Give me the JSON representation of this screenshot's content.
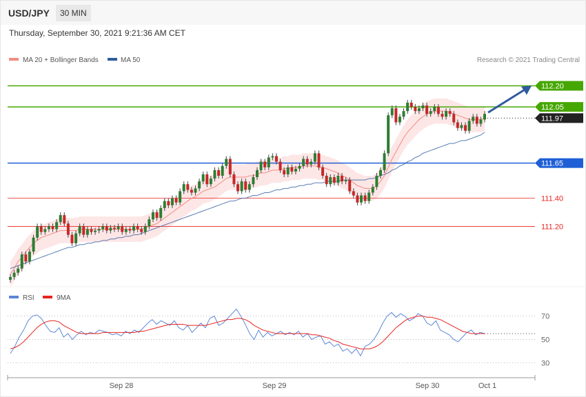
{
  "header": {
    "pair": "USD/JPY",
    "timeframe": "30 MIN"
  },
  "datetime": "Thursday, September 30, 2021 9:21:36 AM CET",
  "copyright": "Research © 2021 Trading Central",
  "legend_top": [
    {
      "label": "MA 20 + Bollinger Bands",
      "color": "#f28b82"
    },
    {
      "label": "MA 50",
      "color": "#2f5b9e"
    }
  ],
  "legend_rsi": [
    {
      "label": "RSI",
      "color": "#5b86d6"
    },
    {
      "label": "9MA",
      "color": "#e8241f"
    }
  ],
  "chart_data": [
    {
      "type": "candlestick",
      "ylim": [
        110.8,
        112.32
      ],
      "x_tick_labels": [
        "Sep 28",
        "Sep 29",
        "Sep 30",
        "Oct 1"
      ],
      "levels": [
        {
          "value": 112.2,
          "label": "112.20",
          "color": "#46a700",
          "style": "solid",
          "tag": "filled"
        },
        {
          "value": 112.05,
          "label": "112.05",
          "color": "#46a700",
          "style": "solid",
          "tag": "filled"
        },
        {
          "value": 111.97,
          "label": "111.97",
          "color": "#222222",
          "style": "dotted",
          "tag": "filled"
        },
        {
          "value": 111.65,
          "label": "111.65",
          "color": "#1f5fd6",
          "style": "solid",
          "tag": "filled"
        },
        {
          "value": 111.4,
          "label": "111.40",
          "color": "#e8241f",
          "style": "solid",
          "tag": "text"
        },
        {
          "value": 111.2,
          "label": "111.20",
          "color": "#e8241f",
          "style": "solid",
          "tag": "text"
        }
      ],
      "close": [
        110.84,
        110.87,
        110.9,
        111.0,
        110.95,
        111.02,
        111.12,
        111.2,
        111.16,
        111.18,
        111.2,
        111.18,
        111.23,
        111.28,
        111.22,
        111.14,
        111.08,
        111.15,
        111.2,
        111.14,
        111.18,
        111.16,
        111.17,
        111.18,
        111.2,
        111.17,
        111.19,
        111.18,
        111.2,
        111.16,
        111.18,
        111.17,
        111.2,
        111.18,
        111.16,
        111.2,
        111.25,
        111.3,
        111.26,
        111.33,
        111.38,
        111.35,
        111.4,
        111.37,
        111.45,
        111.5,
        111.46,
        111.44,
        111.47,
        111.52,
        111.57,
        111.5,
        111.54,
        111.6,
        111.56,
        111.63,
        111.68,
        111.57,
        111.5,
        111.45,
        111.52,
        111.46,
        111.5,
        111.55,
        111.6,
        111.66,
        111.62,
        111.69,
        111.7,
        111.66,
        111.6,
        111.57,
        111.62,
        111.59,
        111.61,
        111.63,
        111.68,
        111.64,
        111.66,
        111.72,
        111.62,
        111.56,
        111.5,
        111.55,
        111.51,
        111.56,
        111.52,
        111.53,
        111.45,
        111.42,
        111.37,
        111.42,
        111.38,
        111.44,
        111.48,
        111.56,
        111.6,
        111.72,
        111.99,
        112.04,
        111.94,
        111.98,
        112.02,
        112.08,
        112.05,
        112.02,
        112.04,
        112.06,
        112.0,
        112.02,
        112.05,
        112.0,
        111.98,
        112.02,
        112.0,
        111.94,
        111.9,
        111.92,
        111.88,
        111.95,
        111.98,
        111.93,
        111.96,
        112.0
      ],
      "ma20": [
        110.86,
        110.9,
        110.95,
        110.98,
        111.02,
        111.05,
        111.08,
        111.1,
        111.12,
        111.13,
        111.14,
        111.15,
        111.16,
        111.17,
        111.17,
        111.17,
        111.17,
        111.17,
        111.18,
        111.18,
        111.18,
        111.18,
        111.18,
        111.18,
        111.18,
        111.18,
        111.18,
        111.18,
        111.18,
        111.18,
        111.18,
        111.18,
        111.18,
        111.18,
        111.18,
        111.19,
        111.2,
        111.21,
        111.22,
        111.24,
        111.26,
        111.28,
        111.3,
        111.32,
        111.34,
        111.36,
        111.38,
        111.4,
        111.41,
        111.43,
        111.45,
        111.46,
        111.47,
        111.48,
        111.5,
        111.52,
        111.54,
        111.55,
        111.55,
        111.55,
        111.55,
        111.55,
        111.56,
        111.56,
        111.57,
        111.58,
        111.58,
        111.59,
        111.6,
        111.6,
        111.6,
        111.61,
        111.61,
        111.62,
        111.62,
        111.62,
        111.63,
        111.63,
        111.63,
        111.63,
        111.62,
        111.62,
        111.61,
        111.6,
        111.59,
        111.58,
        111.56,
        111.55,
        111.53,
        111.51,
        111.49,
        111.48,
        111.47,
        111.47,
        111.47,
        111.49,
        111.52,
        111.56,
        111.62,
        111.68,
        111.73,
        111.78,
        111.83,
        111.87,
        111.9,
        111.93,
        111.96,
        111.98,
        112.0,
        112.01,
        112.02,
        112.02,
        112.02,
        112.02,
        112.01,
        112.0,
        111.99,
        111.98,
        111.97,
        111.96,
        111.96,
        111.96,
        111.96,
        111.97
      ],
      "ma50": [
        110.9,
        110.91,
        110.92,
        110.93,
        110.94,
        110.95,
        110.96,
        110.97,
        110.98,
        110.99,
        111.0,
        111.01,
        111.02,
        111.03,
        111.04,
        111.05,
        111.05,
        111.06,
        111.07,
        111.07,
        111.08,
        111.08,
        111.09,
        111.09,
        111.1,
        111.1,
        111.11,
        111.11,
        111.12,
        111.12,
        111.13,
        111.13,
        111.14,
        111.14,
        111.15,
        111.16,
        111.17,
        111.18,
        111.19,
        111.2,
        111.21,
        111.22,
        111.23,
        111.24,
        111.25,
        111.26,
        111.27,
        111.28,
        111.29,
        111.3,
        111.31,
        111.32,
        111.33,
        111.34,
        111.35,
        111.36,
        111.37,
        111.38,
        111.38,
        111.39,
        111.4,
        111.4,
        111.41,
        111.42,
        111.42,
        111.43,
        111.44,
        111.44,
        111.45,
        111.46,
        111.46,
        111.47,
        111.47,
        111.48,
        111.48,
        111.49,
        111.49,
        111.5,
        111.5,
        111.51,
        111.51,
        111.51,
        111.52,
        111.52,
        111.52,
        111.52,
        111.53,
        111.53,
        111.53,
        111.53,
        111.53,
        111.53,
        111.53,
        111.54,
        111.54,
        111.55,
        111.56,
        111.57,
        111.58,
        111.6,
        111.61,
        111.63,
        111.64,
        111.66,
        111.67,
        111.69,
        111.7,
        111.72,
        111.73,
        111.74,
        111.75,
        111.76,
        111.77,
        111.78,
        111.79,
        111.79,
        111.8,
        111.81,
        111.81,
        111.82,
        111.83,
        111.84,
        111.85,
        111.87
      ]
    },
    {
      "type": "line",
      "ylim": [
        22,
        78
      ],
      "y_tick_labels": [
        "70",
        "50",
        "30"
      ],
      "y_ticks": [
        70,
        50,
        30
      ],
      "series": [
        {
          "name": "RSI",
          "values": [
            38,
            44,
            52,
            58,
            66,
            70,
            71,
            68,
            62,
            57,
            56,
            60,
            52,
            55,
            50,
            54,
            57,
            54,
            56,
            55,
            58,
            57,
            56,
            54,
            55,
            53,
            57,
            55,
            58,
            56,
            60,
            64,
            67,
            63,
            66,
            64,
            62,
            66,
            60,
            58,
            62,
            56,
            60,
            64,
            60,
            68,
            70,
            62,
            64,
            68,
            72,
            76,
            70,
            63,
            55,
            50,
            58,
            52,
            56,
            53,
            55,
            57,
            54,
            56,
            54,
            57,
            52,
            55,
            50,
            52,
            53,
            46,
            48,
            44,
            46,
            40,
            42,
            38,
            42,
            36,
            44,
            46,
            50,
            56,
            64,
            70,
            73,
            69,
            72,
            70,
            66,
            68,
            72,
            70,
            64,
            62,
            66,
            58,
            56,
            54,
            50,
            48,
            52,
            56,
            58,
            54,
            56,
            55
          ]
        },
        {
          "name": "9MA",
          "values": [
            42,
            43,
            45,
            48,
            52,
            56,
            60,
            63,
            65,
            66,
            66,
            65,
            62,
            60,
            58,
            56,
            55,
            55,
            55,
            55,
            55,
            56,
            56,
            56,
            56,
            56,
            56,
            56,
            56,
            57,
            57,
            58,
            59,
            60,
            61,
            62,
            63,
            63,
            63,
            63,
            62,
            62,
            62,
            62,
            62,
            63,
            64,
            65,
            66,
            67,
            67,
            68,
            68,
            67,
            65,
            62,
            60,
            58,
            57,
            56,
            55,
            55,
            55,
            55,
            55,
            55,
            55,
            55,
            54,
            54,
            53,
            52,
            51,
            49,
            48,
            46,
            45,
            44,
            43,
            42,
            42,
            42,
            43,
            45,
            48,
            52,
            56,
            60,
            63,
            66,
            68,
            69,
            70,
            70,
            69,
            69,
            68,
            67,
            65,
            63,
            61,
            59,
            57,
            56,
            55,
            55,
            55,
            55
          ]
        }
      ]
    }
  ]
}
